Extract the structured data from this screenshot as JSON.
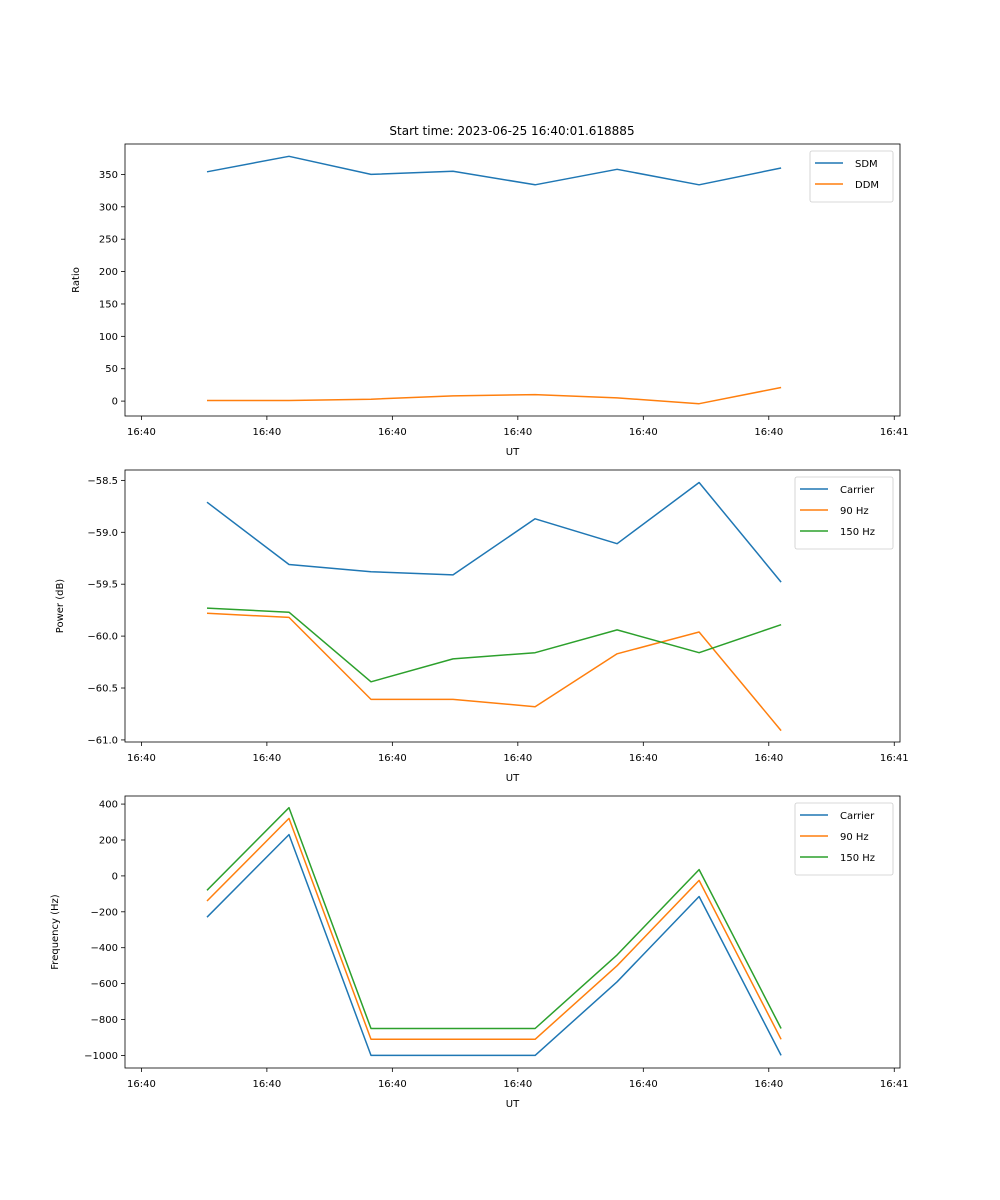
{
  "figure_title": "Start time: 2023-06-25 16:40:01.618885",
  "chart_data": [
    {
      "type": "line",
      "title": "Start time: 2023-06-25 16:40:01.618885",
      "xlabel": "UT",
      "ylabel": "Ratio",
      "x_tick_labels": [
        "16:40",
        "16:40",
        "16:40",
        "16:40",
        "16:40",
        "16:40",
        "16:40",
        "16:41"
      ],
      "x": [
        1,
        2,
        3,
        4,
        5,
        6,
        7,
        8
      ],
      "xlim": [
        0.0,
        9.45
      ],
      "y_ticks": [
        0,
        50,
        100,
        150,
        200,
        250,
        300,
        350
      ],
      "ylim": [
        -23,
        397
      ],
      "grid": false,
      "legend_position": "top-right",
      "series": [
        {
          "name": "SDM",
          "color": "#1f77b4",
          "values": [
            354,
            378,
            350,
            355,
            334,
            358,
            334,
            360
          ]
        },
        {
          "name": "DDM",
          "color": "#ff7f0e",
          "values": [
            1,
            1,
            3,
            8,
            10,
            5,
            -4,
            21
          ]
        }
      ]
    },
    {
      "type": "line",
      "title": "",
      "xlabel": "UT",
      "ylabel": "Power (dB)",
      "x_tick_labels": [
        "16:40",
        "16:40",
        "16:40",
        "16:40",
        "16:40",
        "16:40",
        "16:40",
        "16:41"
      ],
      "x": [
        1,
        2,
        3,
        4,
        5,
        6,
        7,
        8
      ],
      "xlim": [
        0.0,
        9.45
      ],
      "y_ticks": [
        "−58.5",
        "−59.0",
        "−59.5",
        "−60.0",
        "−60.5",
        "−61.0"
      ],
      "ylim": [
        -61.02,
        -58.4
      ],
      "grid": false,
      "legend_position": "top-right",
      "series": [
        {
          "name": "Carrier",
          "color": "#1f77b4",
          "values": [
            -58.71,
            -59.31,
            -59.38,
            -59.41,
            -58.87,
            -59.11,
            -58.52,
            -59.48
          ]
        },
        {
          "name": "90 Hz",
          "color": "#ff7f0e",
          "values": [
            -59.78,
            -59.82,
            -60.61,
            -60.61,
            -60.68,
            -60.17,
            -59.96,
            -60.91
          ]
        },
        {
          "name": "150 Hz",
          "color": "#2ca02c",
          "values": [
            -59.73,
            -59.77,
            -60.44,
            -60.22,
            -60.16,
            -59.94,
            -60.16,
            -59.89
          ]
        }
      ]
    },
    {
      "type": "line",
      "title": "",
      "xlabel": "UT",
      "ylabel": "Frequency (Hz)",
      "x_tick_labels": [
        "16:40",
        "16:40",
        "16:40",
        "16:40",
        "16:40",
        "16:40",
        "16:40",
        "16:41"
      ],
      "x": [
        1,
        2,
        3,
        4,
        5,
        6,
        7,
        8
      ],
      "xlim": [
        0.0,
        9.45
      ],
      "y_ticks": [
        "400",
        "200",
        "0",
        "−200",
        "−400",
        "−600",
        "−800",
        "−1000"
      ],
      "ylim": [
        -1070,
        445
      ],
      "grid": false,
      "legend_position": "top-right",
      "series": [
        {
          "name": "Carrier",
          "color": "#1f77b4",
          "values": [
            -230,
            230,
            -1000,
            -1000,
            -1000,
            -590,
            -115,
            -1000
          ]
        },
        {
          "name": "90 Hz",
          "color": "#ff7f0e",
          "values": [
            -140,
            320,
            -910,
            -910,
            -910,
            -500,
            -25,
            -910
          ]
        },
        {
          "name": "150 Hz",
          "color": "#2ca02c",
          "values": [
            -80,
            380,
            -850,
            -850,
            -850,
            -440,
            35,
            -850
          ]
        }
      ]
    }
  ]
}
